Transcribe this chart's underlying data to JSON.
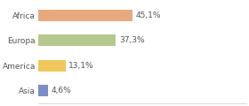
{
  "categories": [
    "Africa",
    "Europa",
    "America",
    "Asia"
  ],
  "values": [
    45.1,
    37.3,
    13.1,
    4.6
  ],
  "bar_colors": [
    "#e8a97e",
    "#b5c98e",
    "#f0c75a",
    "#7b8fc7"
  ],
  "labels": [
    "45,1%",
    "37,3%",
    "13,1%",
    "4,6%"
  ],
  "xlim": [
    0,
    100
  ],
  "background_color": "#ffffff",
  "text_color": "#555555",
  "label_fontsize": 6.5,
  "tick_fontsize": 6.5,
  "bar_height": 0.45
}
